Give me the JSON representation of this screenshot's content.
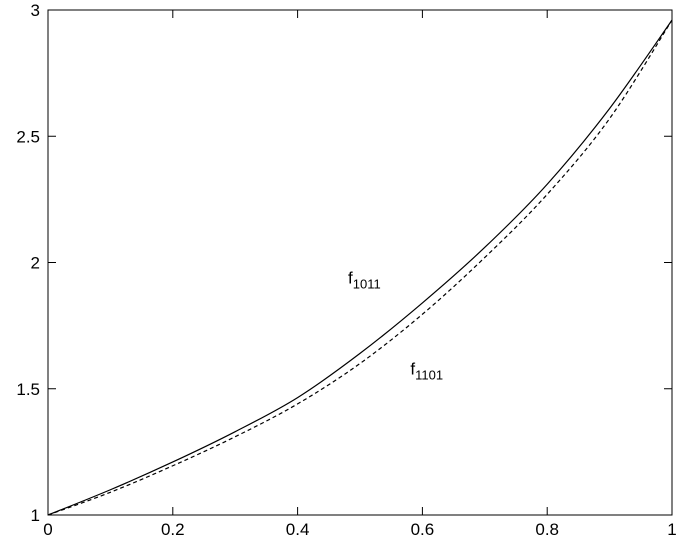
{
  "chart_data": {
    "type": "line",
    "title": "",
    "xlabel": "",
    "ylabel": "",
    "xlim": [
      0,
      1
    ],
    "ylim": [
      1,
      3
    ],
    "grid": false,
    "x_ticks": [
      "0",
      "0.2",
      "0.4",
      "0.6",
      "0.8",
      "1"
    ],
    "y_ticks": [
      "1",
      "1.5",
      "2",
      "2.5",
      "3"
    ],
    "series": [
      {
        "name": "f1011",
        "style": "solid",
        "color": "#000000",
        "x": [
          0,
          0.1,
          0.2,
          0.3,
          0.4,
          0.5,
          0.6,
          0.7,
          0.8,
          0.9,
          1.0
        ],
        "y": [
          1.0,
          1.1,
          1.21,
          1.33,
          1.465,
          1.64,
          1.84,
          2.06,
          2.31,
          2.61,
          2.96
        ]
      },
      {
        "name": "f1101",
        "style": "dashed",
        "color": "#000000",
        "x": [
          0,
          0.1,
          0.2,
          0.3,
          0.4,
          0.5,
          0.6,
          0.7,
          0.8,
          0.9,
          1.0
        ],
        "y": [
          1.0,
          1.09,
          1.195,
          1.31,
          1.44,
          1.6,
          1.795,
          2.02,
          2.27,
          2.57,
          2.96
        ]
      }
    ],
    "annotations": [
      {
        "base": "f",
        "sub": "1011",
        "series": 0,
        "x": 0.5,
        "y": 1.94
      },
      {
        "base": "f",
        "sub": "1101",
        "series": 1,
        "x": 0.6,
        "y": 1.58
      }
    ]
  }
}
